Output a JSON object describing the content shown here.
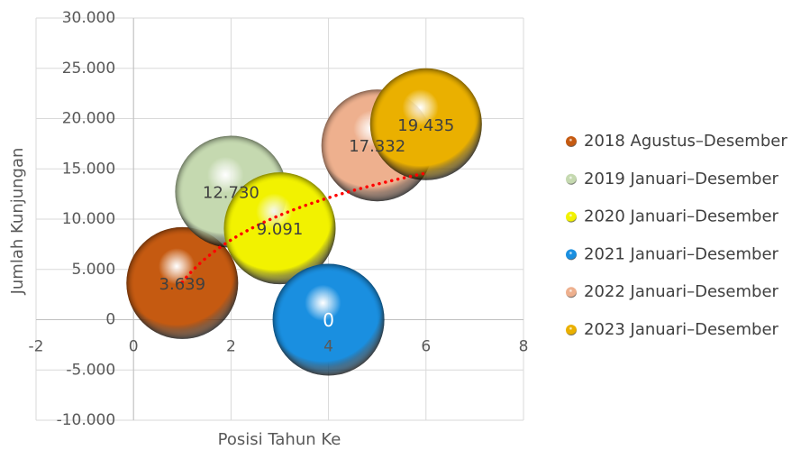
{
  "chart_data": {
    "type": "bubble",
    "x_label": "Posisi Tahun Ke",
    "y_label": "Jumlah Kunjungan",
    "xlim": [
      -2,
      8
    ],
    "xticks": [
      -2,
      0,
      2,
      4,
      6,
      8
    ],
    "ylim": [
      -10000,
      30000
    ],
    "yticks": [
      {
        "value": -10000,
        "label": "-10.000"
      },
      {
        "value": -5000,
        "label": "-5.000"
      },
      0,
      {
        "value": 5000,
        "label": "5.000"
      },
      {
        "value": 10000,
        "label": "10.000"
      },
      {
        "value": 15000,
        "label": "15.000"
      },
      {
        "value": 20000,
        "label": "20.000"
      },
      {
        "value": 25000,
        "label": "25.000"
      },
      {
        "value": 30000,
        "label": "30.000"
      }
    ],
    "grid": true,
    "legend": "right",
    "trendline": "logarithmic",
    "trendline_color": "#ff0000",
    "series": [
      {
        "name": "2018 Agustus–Desember",
        "color": "#c55a11",
        "x": [
          1
        ],
        "values": [
          3639
        ],
        "value_labels": [
          "3.639"
        ]
      },
      {
        "name": "2019 Januari–Desember",
        "color": "#c5d9b0",
        "x": [
          2
        ],
        "values": [
          12730
        ],
        "value_labels": [
          "12.730"
        ]
      },
      {
        "name": "2020 Januari–Desember",
        "color": "#f2f200",
        "x": [
          3
        ],
        "values": [
          9091
        ],
        "value_labels": [
          "9.091"
        ]
      },
      {
        "name": "2021 Januari–Desember",
        "color": "#1a8fe0",
        "x": [
          4
        ],
        "values": [
          0
        ],
        "value_labels": [
          "0"
        ]
      },
      {
        "name": "2022 Januari–Desember",
        "color": "#eeb08e",
        "x": [
          5
        ],
        "values": [
          17332
        ],
        "value_labels": [
          "17.332"
        ]
      },
      {
        "name": "2023 Januari–Desember",
        "color": "#eab000",
        "x": [
          6
        ],
        "values": [
          19435
        ],
        "value_labels": [
          "19.435"
        ]
      }
    ]
  }
}
